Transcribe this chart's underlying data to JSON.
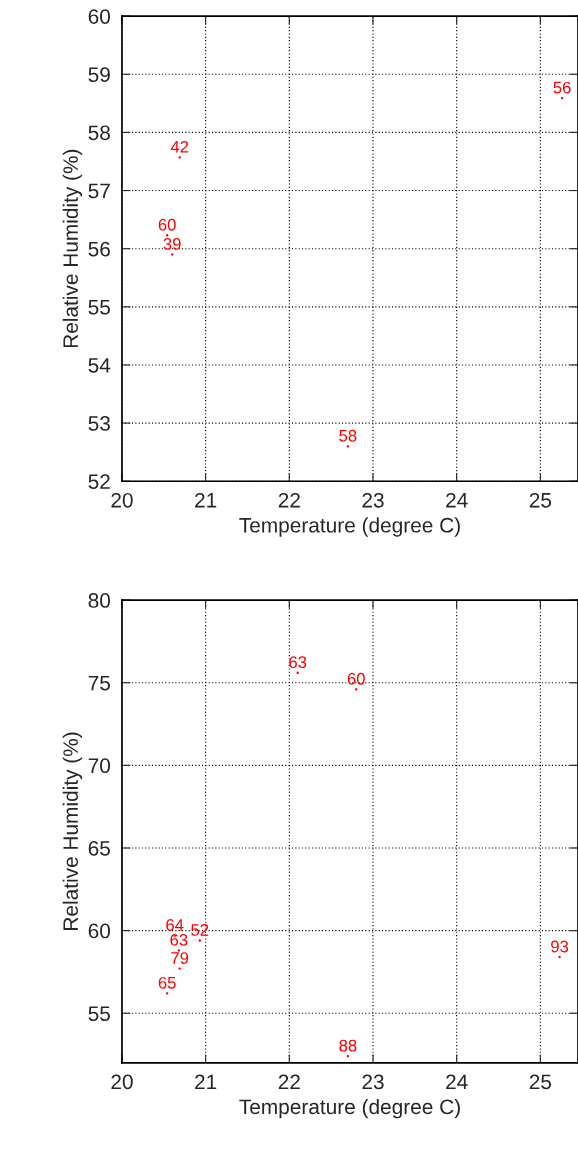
{
  "chart_data": [
    {
      "type": "scatter",
      "xlabel": "Temperature (degree C)",
      "ylabel": "Relative Humidity (%)",
      "xlim": [
        20,
        25.45
      ],
      "xticks": [
        20,
        21,
        22,
        23,
        24,
        25
      ],
      "ylim": [
        52,
        60
      ],
      "yticks": [
        52,
        53,
        54,
        55,
        56,
        57,
        58,
        59,
        60
      ],
      "grid": true,
      "marker": "circle",
      "series": [
        {
          "color": "#ff0000",
          "x": [
            25.26,
            20.69,
            20.54,
            20.6,
            22.7
          ],
          "values": [
            58.59,
            57.57,
            56.23,
            55.9,
            52.6
          ]
        }
      ],
      "annotations": [
        "56",
        "42",
        "60",
        "39",
        "58"
      ]
    },
    {
      "type": "scatter",
      "xlabel": "Temperature (degree C)",
      "ylabel": "Relative Humidity (%)",
      "xlim": [
        20,
        25.45
      ],
      "xticks": [
        20,
        21,
        22,
        23,
        24,
        25
      ],
      "ylim": [
        52,
        80
      ],
      "yticks": [
        55,
        60,
        65,
        70,
        75,
        80
      ],
      "grid": true,
      "marker": "circle",
      "series": [
        {
          "color": "#ff0000",
          "x": [
            22.1,
            22.8,
            20.63,
            20.93,
            20.68,
            20.69,
            20.54,
            25.23,
            22.7
          ],
          "values": [
            75.6,
            74.6,
            59.7,
            59.4,
            58.8,
            57.7,
            56.2,
            58.4,
            52.4
          ]
        }
      ],
      "annotations": [
        "63",
        "60",
        "64",
        "52",
        "63",
        "79",
        "65",
        "93",
        "88"
      ]
    }
  ]
}
